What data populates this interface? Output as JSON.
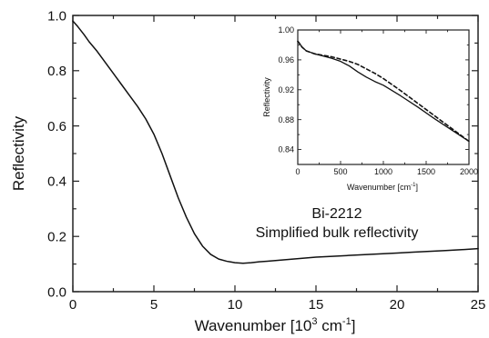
{
  "chart_data": [
    {
      "type": "line",
      "xlabel_main": "Wavenumber [10",
      "xlabel_sup1": "3",
      "xlabel_mid": " cm",
      "xlabel_sup2": "-1",
      "xlabel_end": "]",
      "ylabel": "Reflectivity",
      "xlim": [
        0,
        25
      ],
      "ylim": [
        0.0,
        1.0
      ],
      "xticks": [
        0,
        5,
        10,
        15,
        20,
        25
      ],
      "yticks": [
        0.0,
        0.2,
        0.4,
        0.6,
        0.8,
        1.0
      ],
      "xtick_labels": [
        "0",
        "5",
        "10",
        "15",
        "20",
        "25"
      ],
      "ytick_labels": [
        "0.0",
        "0.2",
        "0.4",
        "0.6",
        "0.8",
        "1.0"
      ],
      "annotation": [
        "Bi-2212",
        "Simplified bulk reflectivity"
      ],
      "grid": false,
      "series": [
        {
          "x": [
            0,
            0.3,
            0.7,
            1,
            1.5,
            2,
            2.5,
            3,
            3.5,
            4,
            4.5,
            5,
            5.5,
            6,
            6.5,
            7,
            7.5,
            8,
            8.5,
            9,
            9.5,
            10,
            10.5,
            11,
            11.5,
            12,
            13,
            14,
            15,
            16,
            17,
            18,
            19,
            20,
            21,
            22,
            23,
            24,
            25
          ],
          "y": [
            0.98,
            0.96,
            0.93,
            0.905,
            0.87,
            0.83,
            0.79,
            0.75,
            0.71,
            0.67,
            0.625,
            0.57,
            0.5,
            0.42,
            0.34,
            0.27,
            0.21,
            0.165,
            0.135,
            0.118,
            0.11,
            0.105,
            0.103,
            0.105,
            0.108,
            0.11,
            0.115,
            0.12,
            0.125,
            0.128,
            0.131,
            0.134,
            0.137,
            0.14,
            0.143,
            0.146,
            0.149,
            0.152,
            0.156
          ]
        }
      ]
    },
    {
      "type": "line",
      "xlabel_main": "Wavenumber [cm",
      "xlabel_sup": "-1",
      "xlabel_end": "]",
      "ylabel": "Reflectivity",
      "xlim": [
        0,
        2000
      ],
      "ylim": [
        0.82,
        1.0
      ],
      "xticks": [
        0,
        500,
        1000,
        1500,
        2000
      ],
      "yticks": [
        0.84,
        0.88,
        0.92,
        0.96,
        1.0
      ],
      "xtick_labels": [
        "0",
        "500",
        "1000",
        "1500",
        "2000"
      ],
      "ytick_labels": [
        "0.84",
        "0.88",
        "0.92",
        "0.96",
        "1.00"
      ],
      "grid": false,
      "series": [
        {
          "style": "solid",
          "x": [
            0,
            20,
            50,
            100,
            200,
            300,
            400,
            500,
            600,
            700,
            800,
            900,
            1000,
            1200,
            1400,
            1600,
            1800,
            2000
          ],
          "y": [
            0.985,
            0.982,
            0.977,
            0.972,
            0.968,
            0.965,
            0.962,
            0.958,
            0.952,
            0.944,
            0.937,
            0.931,
            0.926,
            0.912,
            0.897,
            0.881,
            0.866,
            0.851
          ]
        },
        {
          "style": "dashed",
          "x": [
            0,
            20,
            50,
            100,
            200,
            300,
            400,
            500,
            600,
            700,
            800,
            900,
            1000,
            1200,
            1400,
            1600,
            1800,
            2000
          ],
          "y": [
            0.985,
            0.982,
            0.977,
            0.972,
            0.968,
            0.966,
            0.964,
            0.961,
            0.958,
            0.954,
            0.948,
            0.942,
            0.935,
            0.919,
            0.902,
            0.885,
            0.868,
            0.851
          ]
        }
      ]
    }
  ]
}
